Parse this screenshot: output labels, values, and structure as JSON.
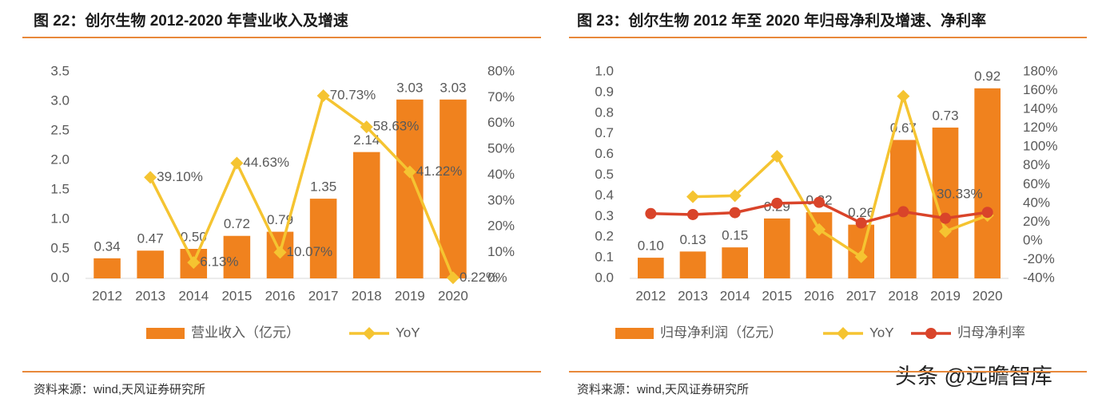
{
  "chart_data": [
    {
      "type": "combo",
      "title": "图 22：创尔生物 2012-2020 年营业收入及增速",
      "categories": [
        "2012",
        "2013",
        "2014",
        "2015",
        "2016",
        "2017",
        "2018",
        "2019",
        "2020"
      ],
      "series": [
        {
          "name": "营业收入（亿元）",
          "type": "bar",
          "color": "#F0821E",
          "values": [
            0.34,
            0.47,
            0.5,
            0.72,
            0.79,
            1.35,
            2.14,
            3.03,
            3.03
          ],
          "value_labels": [
            "0.34",
            "0.47",
            "0.50",
            "0.72",
            "0.79",
            "1.35",
            "2.14",
            "3.03",
            "3.03"
          ]
        },
        {
          "name": "YoY",
          "type": "line",
          "axis": "y2",
          "color": "#F5C431",
          "marker": "diamond",
          "values": [
            null,
            39.1,
            6.13,
            44.63,
            10.07,
            70.73,
            58.63,
            41.22,
            0.22
          ],
          "value_labels": [
            null,
            "39.10%",
            "6.13%",
            "44.63%",
            "10.07%",
            "70.73%",
            "58.63%",
            "41.22%",
            "0.22%"
          ]
        }
      ],
      "ylim": [
        0,
        3.5
      ],
      "yticks": [
        {
          "value": 0,
          "label": "0.0"
        },
        0.5,
        {
          "value": 1,
          "label": "1.0"
        },
        1.5,
        {
          "value": 2,
          "label": "2.0"
        },
        2.5,
        {
          "value": 3,
          "label": "3.0"
        },
        3.5
      ],
      "y2lim": [
        0,
        80
      ],
      "y2ticks": [
        {
          "value": 0,
          "label": "0%"
        },
        {
          "value": 10,
          "label": "10%"
        },
        {
          "value": 20,
          "label": "20%"
        },
        {
          "value": 30,
          "label": "30%"
        },
        {
          "value": 40,
          "label": "40%"
        },
        {
          "value": 50,
          "label": "50%"
        },
        {
          "value": 60,
          "label": "60%"
        },
        {
          "value": 70,
          "label": "70%"
        },
        {
          "value": 80,
          "label": "80%"
        }
      ],
      "grid": false,
      "legend": "bottom",
      "source": "资料来源：wind,天风证券研究所"
    },
    {
      "type": "combo",
      "title": "图 23：创尔生物 2012 年至 2020 年归母净利及增速、净利率",
      "categories": [
        "2012",
        "2013",
        "2014",
        "2015",
        "2016",
        "2017",
        "2018",
        "2019",
        "2020"
      ],
      "series": [
        {
          "name": "归母净利润（亿元）",
          "type": "bar",
          "color": "#F0821E",
          "values": [
            0.1,
            0.13,
            0.15,
            0.29,
            0.32,
            0.26,
            0.67,
            0.73,
            0.92
          ],
          "value_labels": [
            "0.10",
            "0.13",
            "0.15",
            "0.29",
            "0.32",
            "0.26",
            "0.67",
            "0.73",
            "0.92"
          ]
        },
        {
          "name": "YoY",
          "type": "line",
          "axis": "y2",
          "color": "#F5C431",
          "marker": "diamond",
          "values": [
            null,
            47,
            48,
            90,
            12,
            -17,
            154,
            10,
            27
          ]
        },
        {
          "name": "归母净利率",
          "type": "line",
          "axis": "y2",
          "color": "#D9442A",
          "marker": "circle",
          "values": [
            29,
            28,
            30,
            40,
            41,
            19,
            31,
            24,
            30.33
          ],
          "value_labels": [
            null,
            null,
            null,
            null,
            null,
            null,
            null,
            null,
            "30.33%"
          ]
        }
      ],
      "ylim": [
        0,
        1
      ],
      "yticks": [
        {
          "value": 0,
          "label": "0.0"
        },
        0.1,
        0.2,
        0.3,
        0.4,
        0.5,
        0.6,
        0.7,
        0.8,
        0.9,
        {
          "value": 1,
          "label": "1.0"
        }
      ],
      "y2lim": [
        -40,
        180
      ],
      "y2ticks": [
        {
          "value": -40,
          "label": "-40%"
        },
        {
          "value": -20,
          "label": "-20%"
        },
        {
          "value": 0,
          "label": "0%"
        },
        {
          "value": 20,
          "label": "20%"
        },
        {
          "value": 40,
          "label": "40%"
        },
        {
          "value": 60,
          "label": "60%"
        },
        {
          "value": 80,
          "label": "80%"
        },
        {
          "value": 100,
          "label": "100%"
        },
        {
          "value": 120,
          "label": "120%"
        },
        {
          "value": 140,
          "label": "140%"
        },
        {
          "value": 160,
          "label": "160%"
        },
        {
          "value": 180,
          "label": "180%"
        }
      ],
      "grid": false,
      "legend": "bottom",
      "source": "资料来源：wind,天风证券研究所"
    }
  ],
  "watermark": "头条 @远瞻智库"
}
